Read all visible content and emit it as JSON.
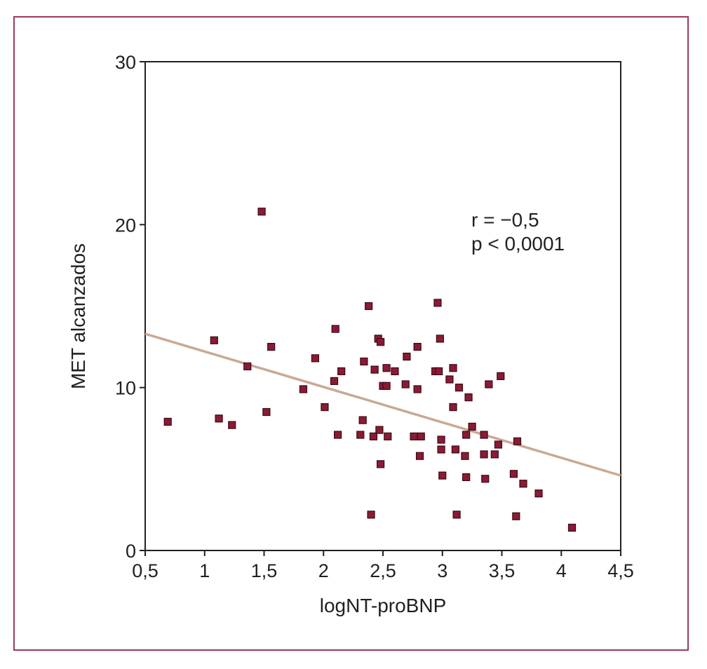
{
  "chart_data": {
    "type": "scatter",
    "title": "",
    "xlabel": "logNT-proBNP",
    "ylabel": "MET alcanzados",
    "xlim": [
      0.5,
      4.5
    ],
    "ylim": [
      0,
      30
    ],
    "x_ticks": [
      0.5,
      1,
      1.5,
      2,
      2.5,
      3,
      3.5,
      4,
      4.5
    ],
    "x_tick_labels": [
      "0,5",
      "1",
      "1,5",
      "2",
      "2,5",
      "3",
      "3,5",
      "4",
      "4,5"
    ],
    "y_ticks": [
      0,
      10,
      20,
      30
    ],
    "y_tick_labels": [
      "0",
      "10",
      "20",
      "30"
    ],
    "grid": false,
    "annotations": [
      "r = −0,5",
      "p < 0,0001"
    ],
    "regression_line": {
      "x": [
        0.5,
        4.5
      ],
      "y": [
        13.3,
        4.6
      ]
    },
    "colors": {
      "points": "#8b1a35",
      "point_border": "#3a0a16",
      "regression": "#c9a994",
      "frame": "#9c3a5c",
      "axis": "#231f20"
    },
    "points": [
      {
        "x": 0.69,
        "y": 7.9
      },
      {
        "x": 1.08,
        "y": 12.9
      },
      {
        "x": 1.12,
        "y": 8.1
      },
      {
        "x": 1.23,
        "y": 7.7
      },
      {
        "x": 1.36,
        "y": 11.3
      },
      {
        "x": 1.48,
        "y": 20.8
      },
      {
        "x": 1.52,
        "y": 8.5
      },
      {
        "x": 1.56,
        "y": 12.5
      },
      {
        "x": 1.83,
        "y": 9.9
      },
      {
        "x": 1.93,
        "y": 11.8
      },
      {
        "x": 2.01,
        "y": 8.8
      },
      {
        "x": 2.09,
        "y": 10.4
      },
      {
        "x": 2.1,
        "y": 13.6
      },
      {
        "x": 2.12,
        "y": 7.1
      },
      {
        "x": 2.15,
        "y": 11.0
      },
      {
        "x": 2.31,
        "y": 7.1
      },
      {
        "x": 2.33,
        "y": 8.0
      },
      {
        "x": 2.34,
        "y": 11.6
      },
      {
        "x": 2.38,
        "y": 15.0
      },
      {
        "x": 2.4,
        "y": 2.2
      },
      {
        "x": 2.42,
        "y": 7.0
      },
      {
        "x": 2.43,
        "y": 11.1
      },
      {
        "x": 2.46,
        "y": 13.0
      },
      {
        "x": 2.47,
        "y": 7.4
      },
      {
        "x": 2.48,
        "y": 12.8
      },
      {
        "x": 2.48,
        "y": 5.3
      },
      {
        "x": 2.5,
        "y": 10.1
      },
      {
        "x": 2.53,
        "y": 11.2
      },
      {
        "x": 2.53,
        "y": 10.1
      },
      {
        "x": 2.54,
        "y": 7.0
      },
      {
        "x": 2.6,
        "y": 11.0
      },
      {
        "x": 2.69,
        "y": 10.2
      },
      {
        "x": 2.7,
        "y": 11.9
      },
      {
        "x": 2.76,
        "y": 7.0
      },
      {
        "x": 2.79,
        "y": 9.9
      },
      {
        "x": 2.79,
        "y": 12.5
      },
      {
        "x": 2.81,
        "y": 5.8
      },
      {
        "x": 2.82,
        "y": 7.0
      },
      {
        "x": 2.94,
        "y": 11.0
      },
      {
        "x": 2.96,
        "y": 15.2
      },
      {
        "x": 2.97,
        "y": 11.0
      },
      {
        "x": 2.98,
        "y": 13.0
      },
      {
        "x": 2.99,
        "y": 6.8
      },
      {
        "x": 2.99,
        "y": 6.2
      },
      {
        "x": 3.0,
        "y": 4.6
      },
      {
        "x": 3.06,
        "y": 10.5
      },
      {
        "x": 3.09,
        "y": 8.8
      },
      {
        "x": 3.09,
        "y": 11.2
      },
      {
        "x": 3.11,
        "y": 6.2
      },
      {
        "x": 3.12,
        "y": 2.2
      },
      {
        "x": 3.14,
        "y": 10.0
      },
      {
        "x": 3.19,
        "y": 5.8
      },
      {
        "x": 3.2,
        "y": 7.1
      },
      {
        "x": 3.2,
        "y": 4.5
      },
      {
        "x": 3.22,
        "y": 9.4
      },
      {
        "x": 3.25,
        "y": 7.6
      },
      {
        "x": 3.35,
        "y": 7.1
      },
      {
        "x": 3.35,
        "y": 5.9
      },
      {
        "x": 3.36,
        "y": 4.4
      },
      {
        "x": 3.39,
        "y": 10.2
      },
      {
        "x": 3.44,
        "y": 5.9
      },
      {
        "x": 3.47,
        "y": 6.5
      },
      {
        "x": 3.49,
        "y": 10.7
      },
      {
        "x": 3.6,
        "y": 4.7
      },
      {
        "x": 3.62,
        "y": 2.1
      },
      {
        "x": 3.63,
        "y": 6.7
      },
      {
        "x": 3.68,
        "y": 4.1
      },
      {
        "x": 3.81,
        "y": 3.5
      },
      {
        "x": 4.09,
        "y": 1.4
      }
    ]
  }
}
